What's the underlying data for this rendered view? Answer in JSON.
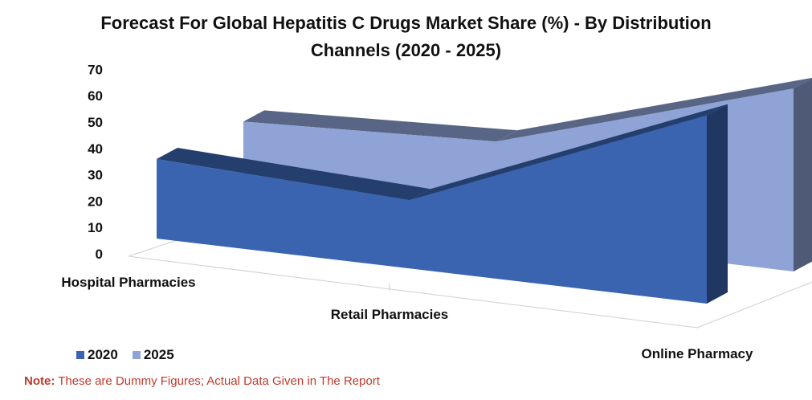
{
  "chart_data": {
    "type": "area",
    "title_lines": [
      "Forecast For Global Hepatitis C Drugs Market Share (%) - By Distribution",
      "Channels (2020 - 2025)"
    ],
    "categories": [
      "Hospital Pharmacies",
      "Retail Pharmacies",
      "Online Pharmacy"
    ],
    "series": [
      {
        "name": "2020",
        "values": [
          30,
          26,
          71
        ],
        "color": "#3a64b0"
      },
      {
        "name": "2025",
        "values": [
          32,
          36,
          69
        ],
        "color": "#8fa3d6"
      }
    ],
    "yticks": [
      0,
      10,
      20,
      30,
      40,
      50,
      60,
      70
    ],
    "ylim": [
      0,
      70
    ],
    "legend_position": "bottom-left",
    "three_d": true
  },
  "note": {
    "label": "Note:",
    "text": "These are Dummy Figures; Actual Data Given in The Report",
    "color": "#c0392b"
  }
}
